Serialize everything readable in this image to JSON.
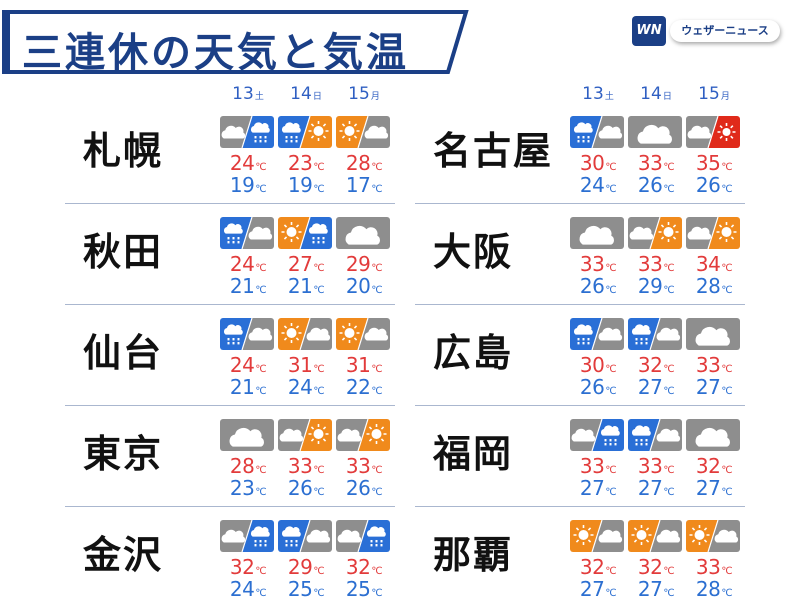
{
  "title": "三連休の天気と気温",
  "logo": {
    "mark": "WN",
    "name": "ウェザーニュース"
  },
  "colors": {
    "title": "#1b3f86",
    "max": "#e23b3b",
    "min": "#2c6fd1",
    "day": "#2f5fc2"
  },
  "days": [
    {
      "num": "13",
      "dow": "土"
    },
    {
      "num": "14",
      "dow": "日"
    },
    {
      "num": "15",
      "dow": "月"
    }
  ],
  "temp_unit": "℃",
  "left": [
    {
      "city": "札幌",
      "forecast": [
        {
          "icon": "cloudy-then-rain-icon",
          "max": "24",
          "min": "19"
        },
        {
          "icon": "rain-then-sunny-icon",
          "max": "23",
          "min": "19"
        },
        {
          "icon": "sunny-then-cloudy-icon",
          "max": "28",
          "min": "17"
        }
      ]
    },
    {
      "city": "秋田",
      "forecast": [
        {
          "icon": "rain-then-cloudy-icon",
          "max": "24",
          "min": "21"
        },
        {
          "icon": "sunny-then-rain-icon",
          "max": "27",
          "min": "21"
        },
        {
          "icon": "cloudy-icon",
          "max": "29",
          "min": "20"
        }
      ]
    },
    {
      "city": "仙台",
      "forecast": [
        {
          "icon": "rain-then-cloudy-icon",
          "max": "24",
          "min": "21"
        },
        {
          "icon": "sunny-then-cloudy-icon",
          "max": "31",
          "min": "24"
        },
        {
          "icon": "sunny-then-cloudy-icon",
          "max": "31",
          "min": "22"
        }
      ]
    },
    {
      "city": "東京",
      "forecast": [
        {
          "icon": "cloudy-icon",
          "max": "28",
          "min": "23"
        },
        {
          "icon": "cloudy-then-sunny-icon",
          "max": "33",
          "min": "26"
        },
        {
          "icon": "cloudy-then-sunny-icon",
          "max": "33",
          "min": "26"
        }
      ]
    },
    {
      "city": "金沢",
      "forecast": [
        {
          "icon": "cloudy-then-rain-icon",
          "max": "32",
          "min": "24"
        },
        {
          "icon": "rain-then-cloudy-icon",
          "max": "29",
          "min": "25"
        },
        {
          "icon": "cloudy-then-rain-icon",
          "max": "32",
          "min": "25"
        }
      ]
    }
  ],
  "right": [
    {
      "city": "名古屋",
      "forecast": [
        {
          "icon": "rain-then-cloudy-icon",
          "max": "30",
          "min": "24"
        },
        {
          "icon": "cloudy-icon",
          "max": "33",
          "min": "26"
        },
        {
          "icon": "cloudy-then-hot-icon",
          "max": "35",
          "min": "26"
        }
      ]
    },
    {
      "city": "大阪",
      "forecast": [
        {
          "icon": "cloudy-icon",
          "max": "33",
          "min": "26"
        },
        {
          "icon": "cloudy-then-sunny-icon",
          "max": "33",
          "min": "29"
        },
        {
          "icon": "cloudy-then-sunny-icon",
          "max": "34",
          "min": "28"
        }
      ]
    },
    {
      "city": "広島",
      "forecast": [
        {
          "icon": "rain-then-cloudy-icon",
          "max": "30",
          "min": "26"
        },
        {
          "icon": "rain-then-cloudy-icon",
          "max": "32",
          "min": "27"
        },
        {
          "icon": "cloudy-icon",
          "max": "33",
          "min": "27"
        }
      ]
    },
    {
      "city": "福岡",
      "forecast": [
        {
          "icon": "cloudy-then-rain-icon",
          "max": "33",
          "min": "27"
        },
        {
          "icon": "rain-then-cloudy-icon",
          "max": "33",
          "min": "27"
        },
        {
          "icon": "cloudy-icon",
          "max": "32",
          "min": "27"
        }
      ]
    },
    {
      "city": "那覇",
      "forecast": [
        {
          "icon": "sunny-then-cloudy-icon",
          "max": "32",
          "min": "27"
        },
        {
          "icon": "sunny-then-cloudy-icon",
          "max": "32",
          "min": "27"
        },
        {
          "icon": "sunny-then-cloudy-icon",
          "max": "33",
          "min": "28"
        }
      ]
    }
  ]
}
